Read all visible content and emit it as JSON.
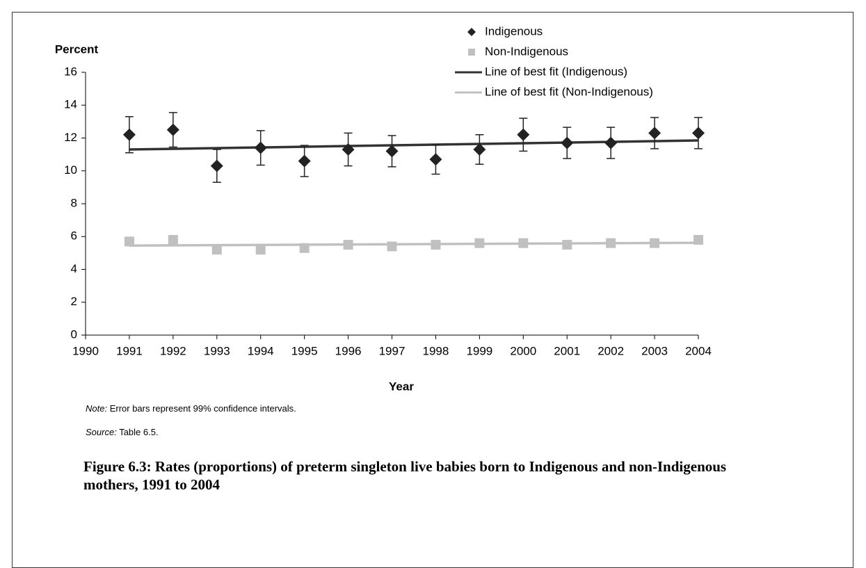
{
  "chart_data": {
    "type": "scatter",
    "y_label": "Percent",
    "x_label": "Year",
    "x": [
      1991,
      1992,
      1993,
      1994,
      1995,
      1996,
      1997,
      1998,
      1999,
      2000,
      2001,
      2002,
      2003,
      2004
    ],
    "series": [
      {
        "name": "Indigenous",
        "color": "#222222",
        "marker": "diamond",
        "values": [
          12.2,
          12.5,
          10.3,
          11.4,
          10.6,
          11.3,
          11.2,
          10.7,
          11.3,
          12.2,
          11.7,
          11.7,
          12.3,
          12.3
        ],
        "errors": [
          1.1,
          1.05,
          1.0,
          1.05,
          0.95,
          1.0,
          0.95,
          0.9,
          0.9,
          1.0,
          0.95,
          0.95,
          0.95,
          0.95
        ]
      },
      {
        "name": "Non-Indigenous",
        "color": "#c0c0c0",
        "marker": "square",
        "values": [
          5.7,
          5.8,
          5.2,
          5.2,
          5.3,
          5.5,
          5.4,
          5.5,
          5.6,
          5.6,
          5.5,
          5.6,
          5.6,
          5.8
        ]
      },
      {
        "name": "Line of best fit (Indigenous)",
        "color": "#333333",
        "marker": "line",
        "x": [
          1991,
          2004
        ],
        "values": [
          11.3,
          11.85
        ]
      },
      {
        "name": "Line of best fit (Non-Indigenous)",
        "color": "#c0c0c0",
        "marker": "line",
        "x": [
          1991,
          2004
        ],
        "values": [
          5.45,
          5.62
        ]
      }
    ],
    "xlim": [
      1990,
      2004
    ],
    "xticks": [
      1990,
      1991,
      1992,
      1993,
      1994,
      1995,
      1996,
      1997,
      1998,
      1999,
      2000,
      2001,
      2002,
      2003,
      2004
    ],
    "ylim": [
      0,
      16
    ],
    "yticks": [
      0,
      2,
      4,
      6,
      8,
      10,
      12,
      14,
      16
    ],
    "legend": "top",
    "note": {
      "label": "Note:",
      "text": "Error bars represent 99% confidence intervals."
    },
    "source": {
      "label": "Source:",
      "text": "Table 6.5."
    },
    "caption": "Figure 6.3: Rates (proportions) of preterm singleton live babies born to Indigenous and non-Indigenous mothers, 1991 to 2004"
  }
}
